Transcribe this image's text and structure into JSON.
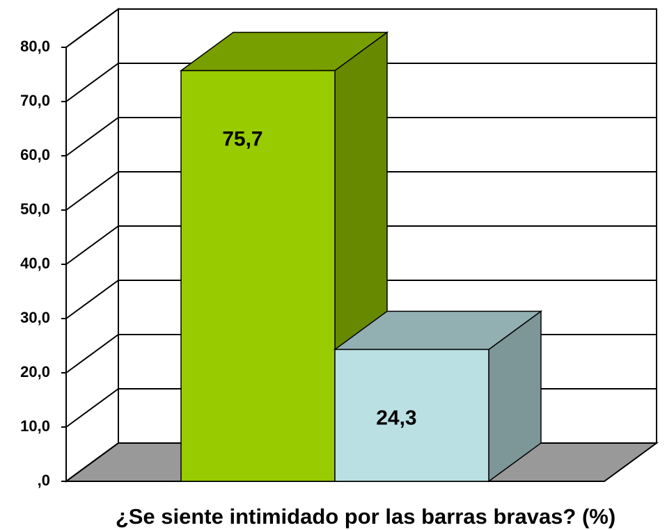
{
  "chart_data": {
    "type": "bar3d",
    "title": "¿Se siente intimidado por las barras bravas? (%)",
    "categories": [
      null,
      null
    ],
    "values": [
      75.7,
      24.3
    ],
    "value_labels": [
      "75,7",
      "24,3"
    ],
    "colors": [
      "#99cc00",
      "#bbe0e3"
    ],
    "ylim": [
      0,
      80
    ],
    "yticks": [
      {
        "value": 0,
        "label": ",0"
      },
      {
        "value": 10,
        "label": "10,0"
      },
      {
        "value": 20,
        "label": "20,0"
      },
      {
        "value": 30,
        "label": "30,0"
      },
      {
        "value": 40,
        "label": "40,0"
      },
      {
        "value": 50,
        "label": "50,0"
      },
      {
        "value": 60,
        "label": "60,0"
      },
      {
        "value": 70,
        "label": "70,0"
      },
      {
        "value": 80,
        "label": "80,0"
      }
    ],
    "grid": true
  }
}
